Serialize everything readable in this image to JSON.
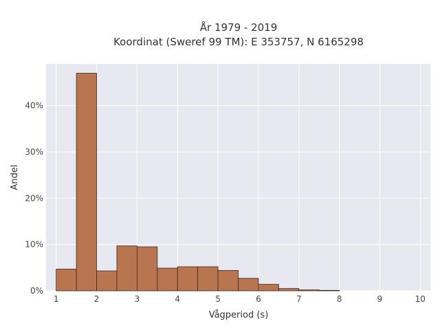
{
  "chart_data": {
    "type": "bar",
    "title_lines": [
      "År 1979 - 2019",
      "Koordinat (Sweref 99 TM): E 353757, N 6165298"
    ],
    "xlabel": "Vågperiod (s)",
    "ylabel": "Andel",
    "x_ticks": [
      "1",
      "2",
      "3",
      "4",
      "5",
      "6",
      "7",
      "8",
      "9",
      "10"
    ],
    "y_ticks": [
      "0%",
      "10%",
      "20%",
      "30%",
      "40%"
    ],
    "xlim": [
      0.75,
      10.25
    ],
    "ylim": [
      0,
      49
    ],
    "bin_width": 0.5,
    "bins": [
      {
        "x0": 1.0,
        "value": 4.7
      },
      {
        "x0": 1.5,
        "value": 47.0
      },
      {
        "x0": 2.0,
        "value": 4.3
      },
      {
        "x0": 2.5,
        "value": 9.7
      },
      {
        "x0": 3.0,
        "value": 9.5
      },
      {
        "x0": 3.5,
        "value": 4.9
      },
      {
        "x0": 4.0,
        "value": 5.2
      },
      {
        "x0": 4.5,
        "value": 5.2
      },
      {
        "x0": 5.0,
        "value": 4.4
      },
      {
        "x0": 5.5,
        "value": 2.7
      },
      {
        "x0": 6.0,
        "value": 1.4
      },
      {
        "x0": 6.5,
        "value": 0.5
      },
      {
        "x0": 7.0,
        "value": 0.2
      },
      {
        "x0": 7.5,
        "value": 0.1
      }
    ],
    "grid": true,
    "colors": {
      "bar_fill": "#b87550",
      "bar_stroke": "#3a2a20",
      "plot_background": "#e8e8f0",
      "grid": "#ffffff"
    }
  }
}
